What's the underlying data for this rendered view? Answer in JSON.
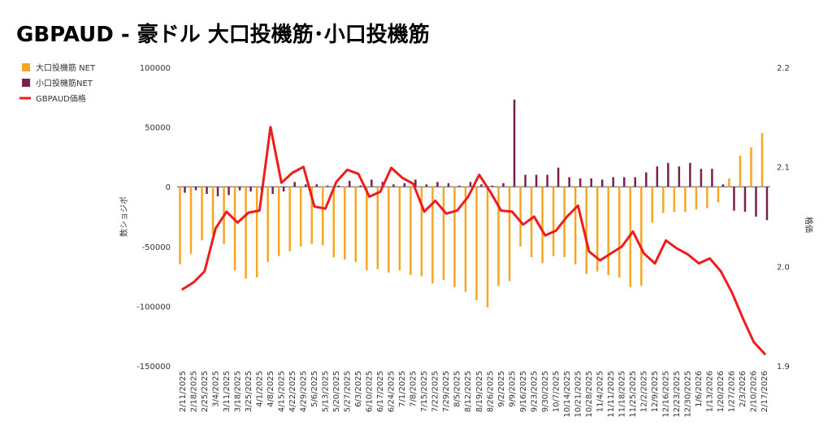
{
  "chart_data": {
    "type": "bar",
    "title": "GBPAUD - 豪ドル 大口投機筋･小口投機筋",
    "ylabel_left": "数ショジポ",
    "ylabel_right": "格価",
    "ylim_left": [
      -150000,
      100000
    ],
    "yticks_left": [
      "100000",
      "50000",
      "0",
      "-50000",
      "-100000",
      "-150000"
    ],
    "ylim_right": [
      1.9,
      2.2
    ],
    "yticks_right": [
      "2.2",
      "2.1",
      "2.0",
      "1.9"
    ],
    "legend_position": "left",
    "categories": [
      "2/11/2025",
      "2/18/2025",
      "2/25/2025",
      "3/4/2025",
      "3/11/2025",
      "3/18/2025",
      "3/25/2025",
      "4/1/2025",
      "4/8/2025",
      "4/15/2025",
      "4/22/2025",
      "4/29/2025",
      "5/6/2025",
      "5/13/2025",
      "5/20/2025",
      "5/27/2025",
      "6/3/2025",
      "6/10/2025",
      "6/17/2025",
      "6/24/2025",
      "7/1/2025",
      "7/8/2025",
      "7/15/2025",
      "7/22/2025",
      "7/29/2025",
      "8/5/2025",
      "8/12/2025",
      "8/19/2025",
      "8/26/2025",
      "9/2/2025",
      "9/9/2025",
      "9/16/2025",
      "9/23/2025",
      "9/30/2025",
      "10/7/2025",
      "10/14/2025",
      "10/21/2025",
      "10/28/2025",
      "11/4/2025",
      "11/11/2025",
      "11/18/2025",
      "11/25/2025",
      "12/2/2025",
      "12/9/2025",
      "12/16/2025",
      "12/23/2025",
      "12/30/2025",
      "1/6/2026",
      "1/13/2026",
      "1/20/2026",
      "1/27/2026",
      "2/3/2026",
      "2/10/2026",
      "2/17/2026"
    ],
    "series": [
      {
        "name": "大口投機筋 NET",
        "type": "bar",
        "color": "#f5a623",
        "values": [
          -65000,
          -56000,
          -45000,
          -40000,
          -48000,
          -70000,
          -77000,
          -76000,
          -63000,
          -58000,
          -54000,
          -50000,
          -48000,
          -49000,
          -59000,
          -61000,
          -63000,
          -70000,
          -69000,
          -72000,
          -70000,
          -74000,
          -75000,
          -81000,
          -78000,
          -84000,
          -88000,
          -95000,
          -101000,
          -83000,
          -79000,
          -50000,
          -59000,
          -64000,
          -58000,
          -59000,
          -65000,
          -73000,
          -71000,
          -74000,
          -76000,
          -84000,
          -83000,
          -30000,
          -22000,
          -21000,
          -21000,
          -19000,
          -18000,
          -13000,
          7000,
          26000,
          33000,
          45000
        ]
      },
      {
        "name": "小口投機筋NET",
        "type": "bar",
        "color": "#7b1f4e",
        "values": [
          -5000,
          -3000,
          -6000,
          -8000,
          -7000,
          -3000,
          -4000,
          -3000,
          -6000,
          -4000,
          4000,
          2000,
          2000,
          1000,
          1000,
          5000,
          1000,
          6000,
          4000,
          2000,
          3000,
          6000,
          2000,
          4000,
          3000,
          1000,
          4000,
          2000,
          1000,
          3000,
          73000,
          10000,
          10000,
          10000,
          16000,
          8000,
          7000,
          7000,
          6000,
          8000,
          8000,
          8000,
          12000,
          17000,
          20000,
          17000,
          20000,
          15000,
          15000,
          2000,
          -20000,
          -21000,
          -25000,
          -28000
        ]
      },
      {
        "name": "GBPAUD価格",
        "type": "line",
        "color": "#ee1c1c",
        "axis": "right",
        "values": [
          1.977,
          1.984,
          1.995,
          2.038,
          2.055,
          2.044,
          2.054,
          2.056,
          2.14,
          2.084,
          2.094,
          2.1,
          2.06,
          2.058,
          2.085,
          2.097,
          2.093,
          2.07,
          2.075,
          2.099,
          2.089,
          2.083,
          2.055,
          2.066,
          2.053,
          2.056,
          2.07,
          2.092,
          2.075,
          2.056,
          2.055,
          2.042,
          2.05,
          2.031,
          2.036,
          2.05,
          2.061,
          2.015,
          2.006,
          2.013,
          2.02,
          2.035,
          2.013,
          2.003,
          2.026,
          2.018,
          2.012,
          2.003,
          2.008,
          1.995,
          1.974,
          1.948,
          1.924,
          1.912
        ]
      }
    ]
  }
}
